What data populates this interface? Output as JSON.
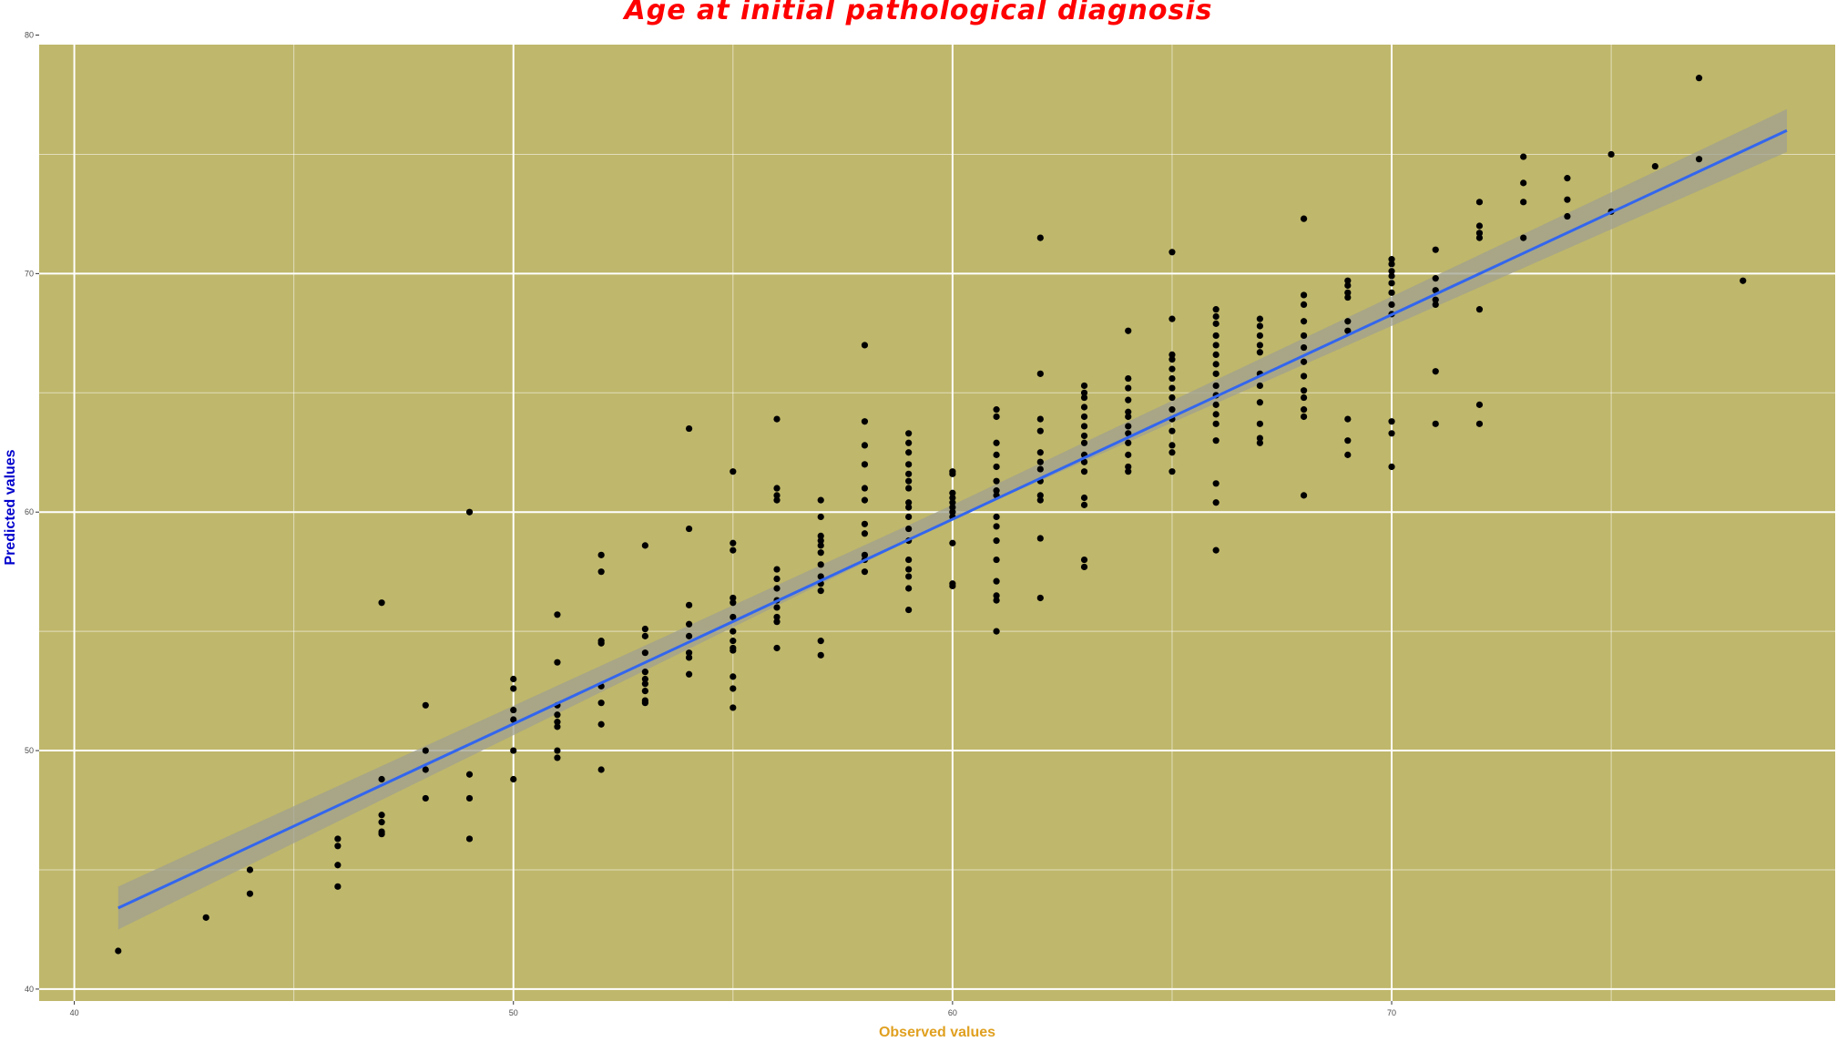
{
  "chart_data": {
    "type": "scatter",
    "title": "Age at initial pathological diagnosis",
    "xlabel": "Observed values",
    "ylabel": "Predicted values",
    "xlim": [
      39.2,
      80.1
    ],
    "ylim": [
      39.5,
      79.6
    ],
    "x_ticks": [
      "40",
      "50",
      "60",
      "70"
    ],
    "y_ticks": [
      "40",
      "50",
      "60",
      "70",
      "80"
    ],
    "x_tick_values": [
      40,
      50,
      60,
      70
    ],
    "y_tick_values": [
      40,
      50,
      60,
      70,
      80
    ],
    "grid": true,
    "colors": {
      "panel_background": "#bfb76b",
      "grid_line": "#ffffff",
      "point": "#000000",
      "fit_line": "#3366ee",
      "confidence_band": "#a0a090",
      "title": "#ff0000",
      "xlabel": "#e0a020",
      "ylabel": "#0000cc"
    },
    "fit_line": {
      "x": [
        41,
        79
      ],
      "y": [
        43.4,
        76.0
      ]
    },
    "confidence_band": {
      "x": [
        41,
        60,
        79
      ],
      "lower": [
        42.5,
        59.7,
        75.1
      ],
      "upper": [
        44.3,
        60.3,
        76.9
      ]
    },
    "points": [
      [
        41,
        41.6
      ],
      [
        43,
        43.0
      ],
      [
        44,
        45.0
      ],
      [
        44,
        44.0
      ],
      [
        46,
        46.3
      ],
      [
        46,
        46.0
      ],
      [
        46,
        45.2
      ],
      [
        46,
        44.3
      ],
      [
        47,
        56.2
      ],
      [
        47,
        48.8
      ],
      [
        47,
        47.3
      ],
      [
        47,
        47.0
      ],
      [
        47,
        46.6
      ],
      [
        47,
        46.5
      ],
      [
        48,
        51.9
      ],
      [
        48,
        50.0
      ],
      [
        48,
        49.2
      ],
      [
        48,
        48.0
      ],
      [
        49,
        60.0
      ],
      [
        49,
        49.0
      ],
      [
        49,
        48.0
      ],
      [
        49,
        46.3
      ],
      [
        50,
        53.0
      ],
      [
        50,
        52.6
      ],
      [
        50,
        51.7
      ],
      [
        50,
        51.3
      ],
      [
        50,
        50.0
      ],
      [
        50,
        48.8
      ],
      [
        51,
        55.7
      ],
      [
        51,
        53.7
      ],
      [
        51,
        51.9
      ],
      [
        51,
        51.5
      ],
      [
        51,
        51.2
      ],
      [
        51,
        51.0
      ],
      [
        51,
        50.0
      ],
      [
        51,
        49.7
      ],
      [
        52,
        58.2
      ],
      [
        52,
        57.5
      ],
      [
        52,
        54.6
      ],
      [
        52,
        54.5
      ],
      [
        52,
        52.7
      ],
      [
        52,
        52.0
      ],
      [
        52,
        51.1
      ],
      [
        52,
        49.2
      ],
      [
        53,
        58.6
      ],
      [
        53,
        55.1
      ],
      [
        53,
        54.8
      ],
      [
        53,
        54.1
      ],
      [
        53,
        53.3
      ],
      [
        53,
        53.0
      ],
      [
        53,
        52.8
      ],
      [
        53,
        52.5
      ],
      [
        53,
        52.1
      ],
      [
        53,
        52.0
      ],
      [
        54,
        63.5
      ],
      [
        54,
        59.3
      ],
      [
        54,
        56.1
      ],
      [
        54,
        55.3
      ],
      [
        54,
        54.8
      ],
      [
        54,
        54.1
      ],
      [
        54,
        53.9
      ],
      [
        54,
        53.2
      ],
      [
        55,
        61.7
      ],
      [
        55,
        58.7
      ],
      [
        55,
        58.4
      ],
      [
        55,
        56.4
      ],
      [
        55,
        56.2
      ],
      [
        55,
        55.6
      ],
      [
        55,
        55.0
      ],
      [
        55,
        54.6
      ],
      [
        55,
        54.3
      ],
      [
        55,
        54.2
      ],
      [
        55,
        53.1
      ],
      [
        55,
        52.6
      ],
      [
        55,
        51.8
      ],
      [
        56,
        63.9
      ],
      [
        56,
        61.0
      ],
      [
        56,
        60.7
      ],
      [
        56,
        60.5
      ],
      [
        56,
        57.6
      ],
      [
        56,
        57.2
      ],
      [
        56,
        56.8
      ],
      [
        56,
        56.3
      ],
      [
        56,
        56.0
      ],
      [
        56,
        55.6
      ],
      [
        56,
        55.4
      ],
      [
        56,
        54.3
      ],
      [
        57,
        60.5
      ],
      [
        57,
        59.8
      ],
      [
        57,
        59.0
      ],
      [
        57,
        58.8
      ],
      [
        57,
        58.6
      ],
      [
        57,
        58.3
      ],
      [
        57,
        57.8
      ],
      [
        57,
        57.3
      ],
      [
        57,
        57.0
      ],
      [
        57,
        56.7
      ],
      [
        57,
        54.6
      ],
      [
        57,
        54.0
      ],
      [
        58,
        67.0
      ],
      [
        58,
        63.8
      ],
      [
        58,
        62.8
      ],
      [
        58,
        62.0
      ],
      [
        58,
        61.0
      ],
      [
        58,
        60.5
      ],
      [
        58,
        59.5
      ],
      [
        58,
        59.1
      ],
      [
        58,
        58.2
      ],
      [
        58,
        58.0
      ],
      [
        58,
        57.5
      ],
      [
        59,
        63.3
      ],
      [
        59,
        62.9
      ],
      [
        59,
        62.5
      ],
      [
        59,
        62.0
      ],
      [
        59,
        61.6
      ],
      [
        59,
        61.3
      ],
      [
        59,
        61.0
      ],
      [
        59,
        60.4
      ],
      [
        59,
        60.2
      ],
      [
        59,
        59.8
      ],
      [
        59,
        59.3
      ],
      [
        59,
        58.8
      ],
      [
        59,
        58.0
      ],
      [
        59,
        57.6
      ],
      [
        59,
        57.3
      ],
      [
        59,
        56.8
      ],
      [
        59,
        55.9
      ],
      [
        60,
        61.7
      ],
      [
        60,
        61.6
      ],
      [
        60,
        60.8
      ],
      [
        60,
        60.6
      ],
      [
        60,
        60.4
      ],
      [
        60,
        60.2
      ],
      [
        60,
        60.0
      ],
      [
        60,
        59.8
      ],
      [
        60,
        58.7
      ],
      [
        60,
        57.0
      ],
      [
        60,
        56.9
      ],
      [
        61,
        64.3
      ],
      [
        61,
        64.0
      ],
      [
        61,
        62.9
      ],
      [
        61,
        62.4
      ],
      [
        61,
        61.9
      ],
      [
        61,
        61.3
      ],
      [
        61,
        60.9
      ],
      [
        61,
        60.7
      ],
      [
        61,
        59.8
      ],
      [
        61,
        59.4
      ],
      [
        61,
        58.8
      ],
      [
        61,
        58.0
      ],
      [
        61,
        57.1
      ],
      [
        61,
        56.5
      ],
      [
        61,
        56.3
      ],
      [
        61,
        55.0
      ],
      [
        62,
        71.5
      ],
      [
        62,
        65.8
      ],
      [
        62,
        63.9
      ],
      [
        62,
        63.4
      ],
      [
        62,
        62.5
      ],
      [
        62,
        62.1
      ],
      [
        62,
        61.8
      ],
      [
        62,
        61.3
      ],
      [
        62,
        60.7
      ],
      [
        62,
        60.5
      ],
      [
        62,
        58.9
      ],
      [
        62,
        56.4
      ],
      [
        63,
        65.3
      ],
      [
        63,
        65.0
      ],
      [
        63,
        64.8
      ],
      [
        63,
        64.4
      ],
      [
        63,
        64.0
      ],
      [
        63,
        63.6
      ],
      [
        63,
        63.2
      ],
      [
        63,
        62.9
      ],
      [
        63,
        62.4
      ],
      [
        63,
        62.1
      ],
      [
        63,
        61.7
      ],
      [
        63,
        60.6
      ],
      [
        63,
        60.3
      ],
      [
        63,
        58.0
      ],
      [
        63,
        57.7
      ],
      [
        64,
        67.6
      ],
      [
        64,
        65.6
      ],
      [
        64,
        65.2
      ],
      [
        64,
        64.7
      ],
      [
        64,
        64.2
      ],
      [
        64,
        64.0
      ],
      [
        64,
        63.6
      ],
      [
        64,
        63.3
      ],
      [
        64,
        62.9
      ],
      [
        64,
        62.4
      ],
      [
        64,
        61.9
      ],
      [
        64,
        61.7
      ],
      [
        65,
        70.9
      ],
      [
        65,
        68.1
      ],
      [
        65,
        66.6
      ],
      [
        65,
        66.4
      ],
      [
        65,
        66.0
      ],
      [
        65,
        65.6
      ],
      [
        65,
        65.2
      ],
      [
        65,
        64.8
      ],
      [
        65,
        64.3
      ],
      [
        65,
        63.9
      ],
      [
        65,
        63.4
      ],
      [
        65,
        62.8
      ],
      [
        65,
        62.5
      ],
      [
        65,
        61.7
      ],
      [
        66,
        68.5
      ],
      [
        66,
        68.2
      ],
      [
        66,
        67.9
      ],
      [
        66,
        67.4
      ],
      [
        66,
        67.0
      ],
      [
        66,
        66.6
      ],
      [
        66,
        66.2
      ],
      [
        66,
        65.8
      ],
      [
        66,
        65.3
      ],
      [
        66,
        64.9
      ],
      [
        66,
        64.5
      ],
      [
        66,
        64.1
      ],
      [
        66,
        63.7
      ],
      [
        66,
        63.0
      ],
      [
        66,
        61.2
      ],
      [
        66,
        60.4
      ],
      [
        66,
        58.4
      ],
      [
        67,
        68.1
      ],
      [
        67,
        67.8
      ],
      [
        67,
        67.4
      ],
      [
        67,
        67.0
      ],
      [
        67,
        66.7
      ],
      [
        67,
        65.8
      ],
      [
        67,
        65.3
      ],
      [
        67,
        64.6
      ],
      [
        67,
        63.7
      ],
      [
        67,
        63.1
      ],
      [
        67,
        62.9
      ],
      [
        68,
        72.3
      ],
      [
        68,
        69.1
      ],
      [
        68,
        68.7
      ],
      [
        68,
        68.0
      ],
      [
        68,
        67.4
      ],
      [
        68,
        66.9
      ],
      [
        68,
        66.3
      ],
      [
        68,
        65.7
      ],
      [
        68,
        65.1
      ],
      [
        68,
        64.8
      ],
      [
        68,
        64.3
      ],
      [
        68,
        64.0
      ],
      [
        68,
        60.7
      ],
      [
        69,
        69.7
      ],
      [
        69,
        69.5
      ],
      [
        69,
        69.2
      ],
      [
        69,
        69.0
      ],
      [
        69,
        68.0
      ],
      [
        69,
        67.6
      ],
      [
        69,
        63.9
      ],
      [
        69,
        63.0
      ],
      [
        69,
        62.4
      ],
      [
        70,
        70.6
      ],
      [
        70,
        70.4
      ],
      [
        70,
        70.1
      ],
      [
        70,
        69.9
      ],
      [
        70,
        69.6
      ],
      [
        70,
        69.2
      ],
      [
        70,
        68.7
      ],
      [
        70,
        68.3
      ],
      [
        70,
        63.8
      ],
      [
        70,
        63.3
      ],
      [
        70,
        61.9
      ],
      [
        71,
        71.0
      ],
      [
        71,
        69.8
      ],
      [
        71,
        69.3
      ],
      [
        71,
        68.9
      ],
      [
        71,
        68.7
      ],
      [
        71,
        65.9
      ],
      [
        71,
        63.7
      ],
      [
        72,
        73.0
      ],
      [
        72,
        72.0
      ],
      [
        72,
        71.7
      ],
      [
        72,
        71.5
      ],
      [
        72,
        68.5
      ],
      [
        72,
        64.5
      ],
      [
        72,
        63.7
      ],
      [
        73,
        74.9
      ],
      [
        73,
        73.8
      ],
      [
        73,
        73.0
      ],
      [
        73,
        71.5
      ],
      [
        74,
        74.0
      ],
      [
        74,
        73.1
      ],
      [
        74,
        72.4
      ],
      [
        75,
        75.0
      ],
      [
        75,
        72.6
      ],
      [
        76,
        74.5
      ],
      [
        77,
        78.2
      ],
      [
        77,
        74.8
      ],
      [
        78,
        69.7
      ]
    ]
  }
}
